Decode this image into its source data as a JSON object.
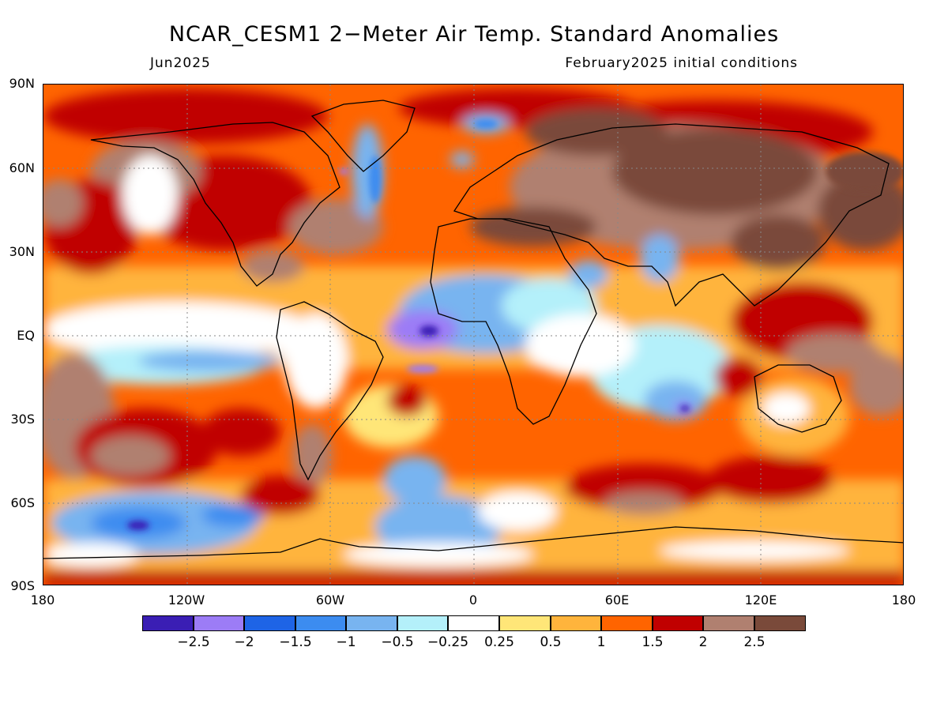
{
  "title": "NCAR_CESM1 2−Meter Air Temp. Standard Anomalies",
  "subtitle_left": "Jun2025",
  "subtitle_right": "February2025 initial conditions",
  "lat_labels": [
    "90N",
    "60N",
    "30N",
    "EQ",
    "30S",
    "60S",
    "90S"
  ],
  "lon_labels": [
    "180",
    "120W",
    "60W",
    "0",
    "60E",
    "120E",
    "180"
  ],
  "colorbar": {
    "colors": [
      "#3a1eb4",
      "#9c7cf6",
      "#1e64e6",
      "#3c8cf0",
      "#78b4f0",
      "#b4f0fa",
      "#ffffff",
      "#ffe678",
      "#ffb43c",
      "#ff6400",
      "#c00000",
      "#b08070",
      "#7a4a3a"
    ],
    "labels": [
      "−2.5",
      "−2",
      "−1.5",
      "−1",
      "−0.5",
      "−0.25",
      "0.25",
      "0.5",
      "1",
      "1.5",
      "2",
      "2.5"
    ]
  }
}
